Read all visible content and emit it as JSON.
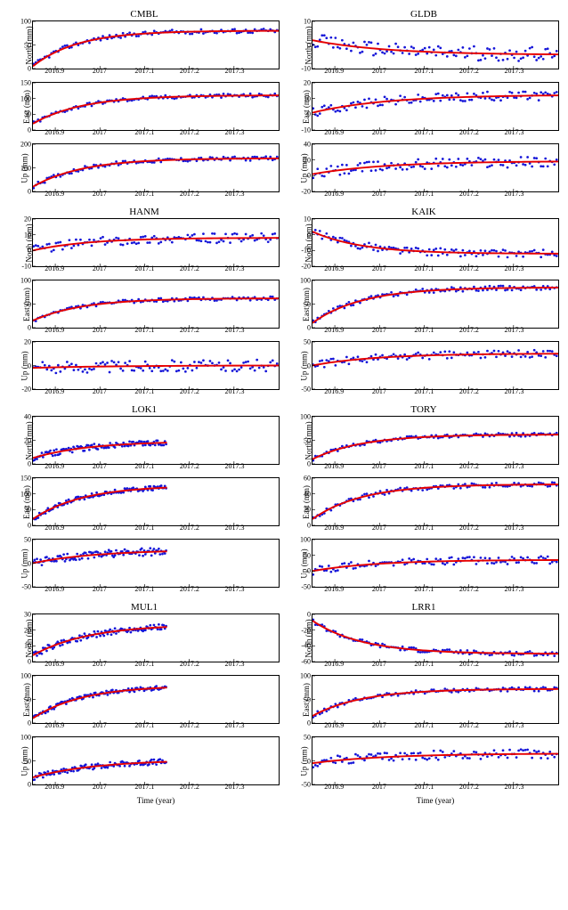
{
  "global": {
    "xlabel": "Time (year)",
    "xticks": [
      2016.9,
      2017,
      2017.1,
      2017.2,
      2017.3
    ],
    "xrange": [
      2016.85,
      2017.4
    ],
    "data_color": "#1414d8",
    "fit_color": "#e60000",
    "marker_size": 1.4,
    "line_width": 2,
    "background_color": "#ffffff",
    "font_family": "Times New Roman",
    "title_fontsize": 11,
    "label_fontsize": 9,
    "tick_fontsize": 8
  },
  "stations": [
    {
      "name": "CMBL",
      "col": 0,
      "xend": 2017.4,
      "panels": [
        {
          "ylabel": "North (mm)",
          "ylim": [
            0,
            100
          ],
          "yticks": [
            0,
            50,
            100
          ],
          "curve": {
            "y0": 5,
            "y1": 80,
            "k": 10
          }
        },
        {
          "ylabel": "East (mm)",
          "ylim": [
            0,
            150
          ],
          "yticks": [
            0,
            50,
            100,
            150
          ],
          "curve": {
            "y0": 20,
            "y1": 110,
            "k": 9
          }
        },
        {
          "ylabel": "Up (mm)",
          "ylim": [
            0,
            200
          ],
          "yticks": [
            0,
            100,
            200
          ],
          "curve": {
            "y0": 20,
            "y1": 140,
            "k": 9
          }
        }
      ]
    },
    {
      "name": "GLDB",
      "col": 1,
      "xend": 2017.4,
      "panels": [
        {
          "ylabel": "North (mm)",
          "ylim": [
            -10,
            10
          ],
          "yticks": [
            -10,
            0,
            10
          ],
          "curve": {
            "y0": 2,
            "y1": -4,
            "k": 6
          },
          "noise": 3
        },
        {
          "ylabel": "East (mm)",
          "ylim": [
            -10,
            20
          ],
          "yticks": [
            -10,
            0,
            10,
            20
          ],
          "curve": {
            "y0": 1,
            "y1": 12,
            "k": 6
          },
          "noise": 3
        },
        {
          "ylabel": "Up (mm)",
          "ylim": [
            -20,
            40
          ],
          "yticks": [
            -20,
            0,
            20,
            40
          ],
          "curve": {
            "y0": 2,
            "y1": 18,
            "k": 6
          },
          "noise": 7
        }
      ]
    },
    {
      "name": "HANM",
      "col": 0,
      "xend": 2017.4,
      "panels": [
        {
          "ylabel": "North (mm)",
          "ylim": [
            -10,
            20
          ],
          "yticks": [
            -10,
            0,
            10,
            20
          ],
          "curve": {
            "y0": 0,
            "y1": 8,
            "k": 8
          },
          "noise": 3
        },
        {
          "ylabel": "East (mm)",
          "ylim": [
            0,
            100
          ],
          "yticks": [
            0,
            50,
            100
          ],
          "curve": {
            "y0": 15,
            "y1": 62,
            "k": 9
          }
        },
        {
          "ylabel": "Up (mm)",
          "ylim": [
            -20,
            20
          ],
          "yticks": [
            -20,
            0,
            20
          ],
          "curve": {
            "y0": -2,
            "y1": 0,
            "k": 5
          },
          "noise": 5
        }
      ]
    },
    {
      "name": "KAIK",
      "col": 1,
      "xend": 2017.4,
      "panels": [
        {
          "ylabel": "North (mm)",
          "ylim": [
            -20,
            10
          ],
          "yticks": [
            -20,
            -10,
            0,
            10
          ],
          "curve": {
            "y0": 2,
            "y1": -12,
            "k": 9
          },
          "noise": 2.5
        },
        {
          "ylabel": "East (mm)",
          "ylim": [
            0,
            100
          ],
          "yticks": [
            0,
            50,
            100
          ],
          "curve": {
            "y0": 10,
            "y1": 85,
            "k": 9
          }
        },
        {
          "ylabel": "Up (mm)",
          "ylim": [
            -50,
            50
          ],
          "yticks": [
            -50,
            0,
            50
          ],
          "curve": {
            "y0": 0,
            "y1": 25,
            "k": 7
          },
          "noise": 8
        }
      ]
    },
    {
      "name": "LOK1",
      "col": 0,
      "xend": 2017.15,
      "panels": [
        {
          "ylabel": "North (mm)",
          "ylim": [
            0,
            40
          ],
          "yticks": [
            0,
            20,
            40
          ],
          "curve": {
            "y0": 5,
            "y1": 18,
            "k": 8
          },
          "noise": 2.5
        },
        {
          "ylabel": "East (mm)",
          "ylim": [
            0,
            150
          ],
          "yticks": [
            0,
            50,
            100,
            150
          ],
          "curve": {
            "y0": 20,
            "y1": 120,
            "k": 9
          }
        },
        {
          "ylabel": "Up (mm)",
          "ylim": [
            -50,
            50
          ],
          "yticks": [
            -50,
            0,
            50
          ],
          "curve": {
            "y0": 0,
            "y1": 25,
            "k": 7
          },
          "noise": 8
        }
      ]
    },
    {
      "name": "TORY",
      "col": 1,
      "xend": 2017.4,
      "panels": [
        {
          "ylabel": "North (mm)",
          "ylim": [
            0,
            100
          ],
          "yticks": [
            0,
            50,
            100
          ],
          "curve": {
            "y0": 10,
            "y1": 62,
            "k": 9
          }
        },
        {
          "ylabel": "East (mm)",
          "ylim": [
            0,
            60
          ],
          "yticks": [
            0,
            20,
            40,
            60
          ],
          "curve": {
            "y0": 8,
            "y1": 52,
            "k": 9
          }
        },
        {
          "ylabel": "Up (mm)",
          "ylim": [
            -50,
            100
          ],
          "yticks": [
            -50,
            0,
            50,
            100
          ],
          "curve": {
            "y0": 0,
            "y1": 35,
            "k": 7
          },
          "noise": 12
        }
      ]
    },
    {
      "name": "MUL1",
      "col": 0,
      "xend": 2017.15,
      "panels": [
        {
          "ylabel": "North (mm)",
          "ylim": [
            0,
            30
          ],
          "yticks": [
            0,
            10,
            20,
            30
          ],
          "curve": {
            "y0": 4,
            "y1": 22,
            "k": 8
          },
          "noise": 2
        },
        {
          "ylabel": "East (mm)",
          "ylim": [
            0,
            100
          ],
          "yticks": [
            0,
            50,
            100
          ],
          "curve": {
            "y0": 10,
            "y1": 75,
            "k": 9
          }
        },
        {
          "ylabel": "Up (mm)",
          "ylim": [
            0,
            100
          ],
          "yticks": [
            0,
            50,
            100
          ],
          "curve": {
            "y0": 15,
            "y1": 48,
            "k": 7
          },
          "noise": 6
        }
      ]
    },
    {
      "name": "LRR1",
      "col": 1,
      "xend": 2017.4,
      "panels": [
        {
          "ylabel": "North (mm)",
          "ylim": [
            -60,
            0
          ],
          "yticks": [
            -60,
            -40,
            -20,
            0
          ],
          "curve": {
            "y0": -8,
            "y1": -50,
            "k": 9
          }
        },
        {
          "ylabel": "East (mm)",
          "ylim": [
            0,
            100
          ],
          "yticks": [
            0,
            50,
            100
          ],
          "curve": {
            "y0": 15,
            "y1": 72,
            "k": 9
          }
        },
        {
          "ylabel": "Up (mm)",
          "ylim": [
            -50,
            50
          ],
          "yticks": [
            -50,
            0,
            50
          ],
          "curve": {
            "y0": -5,
            "y1": 15,
            "k": 6
          },
          "noise": 10
        }
      ]
    }
  ]
}
